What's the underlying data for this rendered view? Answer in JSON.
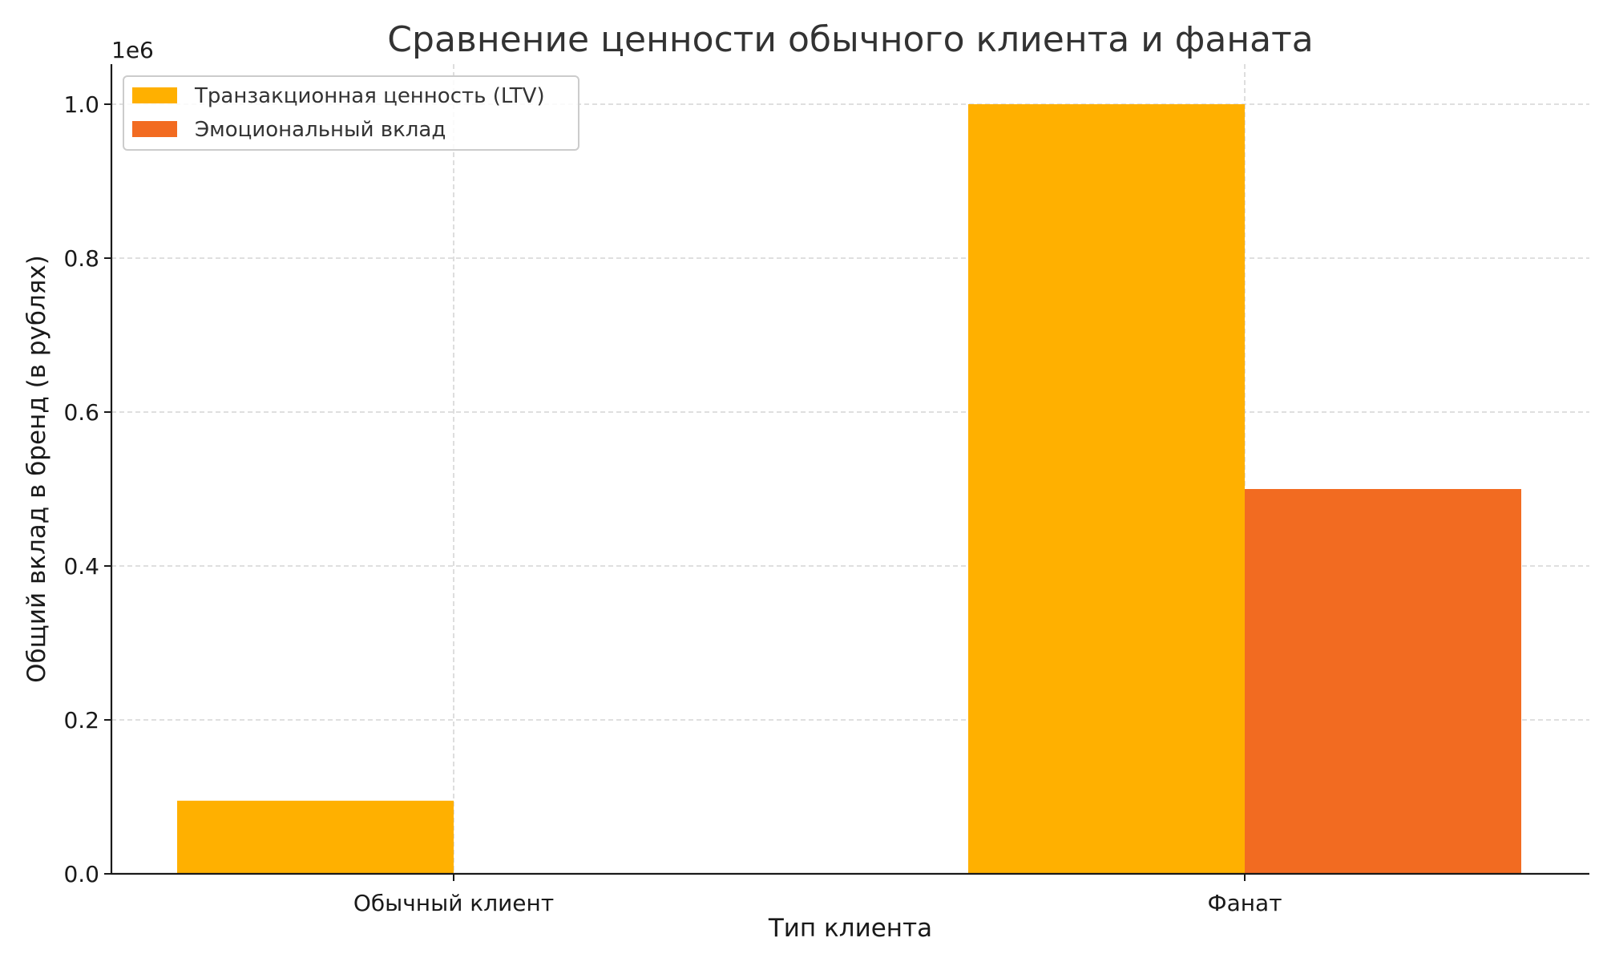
{
  "chart_data": {
    "type": "bar",
    "title": "Сравнение ценности обычного клиента и фаната",
    "xlabel": "Тип клиента",
    "ylabel": "Общий вклад в бренд (в рублях)",
    "y_offset_text": "1e6",
    "categories": [
      "Обычный клиент",
      "Фанат"
    ],
    "series": [
      {
        "name": "Транзакционная ценность (LTV)",
        "values": [
          95000,
          1000000
        ],
        "color": "#FFB000"
      },
      {
        "name": "Эмоциональный вклад",
        "values": [
          0,
          500000
        ],
        "color": "#F26B21"
      }
    ],
    "ylim": [
      0,
      1050000
    ],
    "yticks": [
      0,
      200000,
      400000,
      600000,
      800000,
      1000000
    ],
    "ytick_labels": [
      "0.0",
      "0.2",
      "0.4",
      "0.6",
      "0.8",
      "1.0"
    ],
    "grid": true,
    "legend_position": "top-left"
  }
}
